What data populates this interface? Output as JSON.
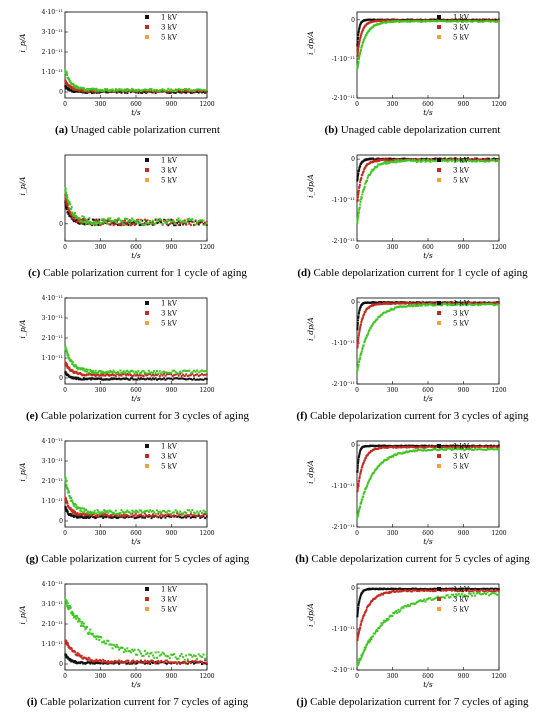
{
  "colors": {
    "1kV": "#111111",
    "3kV": "#c42a1f",
    "5kV": "#3fc521",
    "5kV_marker": "#f2a23a"
  },
  "panels": [
    {
      "label": "(a)",
      "caption": "Unaged cable polarization current",
      "chart_data": {
        "type": "scatter",
        "kind": "pol",
        "xlabel": "t/s",
        "ylabel": "i_p/A",
        "xlim": [
          0,
          1200
        ],
        "ylim": [
          -0.3,
          4.0
        ],
        "y_ticks": [
          0,
          1,
          2,
          3,
          4
        ],
        "y_tick_labels": [
          "0",
          "1·10⁻¹¹",
          "2·10⁻¹¹",
          "3·10⁻¹¹",
          "4·10⁻¹¹"
        ],
        "x_ticks": [
          0,
          300,
          600,
          900,
          1200
        ],
        "series": [
          {
            "name": "1 kV",
            "start": 0.3,
            "tau": 40,
            "end": 0.0,
            "noise": 0.05
          },
          {
            "name": "3 kV",
            "start": 0.6,
            "tau": 45,
            "end": 0.05,
            "noise": 0.05
          },
          {
            "name": "5 kV",
            "start": 1.1,
            "tau": 50,
            "end": 0.1,
            "noise": 0.06
          }
        ]
      }
    },
    {
      "label": "(b)",
      "caption": "Unaged cable depolarization current",
      "chart_data": {
        "type": "scatter",
        "kind": "depol",
        "xlabel": "t/s",
        "ylabel": "i_dp/A",
        "xlim": [
          0,
          1200
        ],
        "ylim": [
          -2.0,
          0.2
        ],
        "y_ticks": [
          -2,
          -1,
          0
        ],
        "y_tick_labels": [
          "-2·10⁻¹¹",
          "-1·10⁻¹¹",
          "0"
        ],
        "x_ticks": [
          0,
          300,
          600,
          900,
          1200
        ],
        "series": [
          {
            "name": "1 kV",
            "start": -0.8,
            "tau": 15,
            "end": 0.0,
            "noise": 0.01
          },
          {
            "name": "3 kV",
            "start": -1.0,
            "tau": 35,
            "end": -0.02,
            "noise": 0.01
          },
          {
            "name": "5 kV",
            "start": -1.3,
            "tau": 60,
            "end": -0.04,
            "noise": 0.015
          }
        ]
      }
    },
    {
      "label": "(c)",
      "caption": "Cable polarization current for 1 cycle of aging",
      "chart_data": {
        "type": "scatter",
        "kind": "pol",
        "xlabel": "t/s",
        "ylabel": "i_p/A",
        "xlim": [
          0,
          1200
        ],
        "ylim": [
          -0.6,
          2.4
        ],
        "y_ticks": [
          0
        ],
        "y_tick_labels": [
          "0"
        ],
        "x_ticks": [
          0,
          300,
          600,
          900,
          1200
        ],
        "series": [
          {
            "name": "1 kV",
            "start": 0.8,
            "tau": 40,
            "end": 0.05,
            "noise": 0.1
          },
          {
            "name": "3 kV",
            "start": 1.0,
            "tau": 45,
            "end": 0.05,
            "noise": 0.1
          },
          {
            "name": "5 kV",
            "start": 1.3,
            "tau": 50,
            "end": 0.08,
            "noise": 0.12
          }
        ]
      }
    },
    {
      "label": "(d)",
      "caption": "Cable depolarization current for 1 cycle of aging",
      "chart_data": {
        "type": "scatter",
        "kind": "depol",
        "xlabel": "t/s",
        "ylabel": "i_dp/A",
        "xlim": [
          0,
          1200
        ],
        "ylim": [
          -2.0,
          0.1
        ],
        "y_ticks": [
          -2,
          -1,
          0
        ],
        "y_tick_labels": [
          "-2·10⁻¹¹",
          "-1·10⁻¹¹",
          "0"
        ],
        "x_ticks": [
          0,
          300,
          600,
          900,
          1200
        ],
        "series": [
          {
            "name": "1 kV",
            "start": -0.6,
            "tau": 20,
            "end": 0.0,
            "noise": 0.015
          },
          {
            "name": "3 kV",
            "start": -1.1,
            "tau": 40,
            "end": -0.02,
            "noise": 0.02
          },
          {
            "name": "5 kV",
            "start": -1.6,
            "tau": 70,
            "end": -0.04,
            "noise": 0.03
          }
        ]
      }
    },
    {
      "label": "(e)",
      "caption": "Cable polarization current for 3 cycles of aging",
      "chart_data": {
        "type": "scatter",
        "kind": "pol",
        "xlabel": "t/s",
        "ylabel": "i_p/A",
        "xlim": [
          0,
          1200
        ],
        "ylim": [
          -0.3,
          4.0
        ],
        "y_ticks": [
          0,
          1,
          2,
          3,
          4
        ],
        "y_tick_labels": [
          "0",
          "1·10⁻¹¹",
          "2·10⁻¹¹",
          "3·10⁻¹¹",
          "4·10⁻¹¹"
        ],
        "x_ticks": [
          0,
          300,
          600,
          900,
          1200
        ],
        "series": [
          {
            "name": "1 kV",
            "start": 0.3,
            "tau": 40,
            "end": -0.05,
            "noise": 0.04
          },
          {
            "name": "3 kV",
            "start": 0.8,
            "tau": 50,
            "end": 0.15,
            "noise": 0.06
          },
          {
            "name": "5 kV",
            "start": 1.6,
            "tau": 60,
            "end": 0.3,
            "noise": 0.08
          }
        ]
      }
    },
    {
      "label": "(f)",
      "caption": "Cable depolarization current for 3 cycles of aging",
      "chart_data": {
        "type": "scatter",
        "kind": "depol",
        "xlabel": "t/s",
        "ylabel": "i_dp/A",
        "xlim": [
          0,
          1200
        ],
        "ylim": [
          -2.0,
          0.1
        ],
        "y_ticks": [
          -2,
          -1,
          0
        ],
        "y_tick_labels": [
          "-2·10⁻¹¹",
          "-1·10⁻¹¹",
          "0"
        ],
        "x_ticks": [
          0,
          300,
          600,
          900,
          1200
        ],
        "series": [
          {
            "name": "1 kV",
            "start": -0.8,
            "tau": 15,
            "end": -0.01,
            "noise": 0.01
          },
          {
            "name": "3 kV",
            "start": -1.2,
            "tau": 40,
            "end": -0.03,
            "noise": 0.015
          },
          {
            "name": "5 kV",
            "start": -1.7,
            "tau": 110,
            "end": -0.06,
            "noise": 0.02
          }
        ]
      }
    },
    {
      "label": "(g)",
      "caption": "Cable polarization current for 5 cycles of aging",
      "chart_data": {
        "type": "scatter",
        "kind": "pol",
        "xlabel": "t/s",
        "ylabel": "i_p/A",
        "xlim": [
          0,
          1200
        ],
        "ylim": [
          -0.3,
          4.0
        ],
        "y_ticks": [
          0,
          1,
          2,
          3,
          4
        ],
        "y_tick_labels": [
          "0",
          "1·10⁻¹¹",
          "2·10⁻¹¹",
          "3·10⁻¹¹",
          "4·10⁻¹¹"
        ],
        "x_ticks": [
          0,
          300,
          600,
          900,
          1200
        ],
        "series": [
          {
            "name": "1 kV",
            "start": 0.7,
            "tau": 30,
            "end": 0.2,
            "noise": 0.06
          },
          {
            "name": "3 kV",
            "start": 1.2,
            "tau": 40,
            "end": 0.3,
            "noise": 0.08
          },
          {
            "name": "5 kV",
            "start": 2.2,
            "tau": 50,
            "end": 0.45,
            "noise": 0.1
          }
        ]
      }
    },
    {
      "label": "(h)",
      "caption": "Cable depolarization current for 5 cycles of aging",
      "chart_data": {
        "type": "scatter",
        "kind": "depol",
        "xlabel": "t/s",
        "ylabel": "i_dp/A",
        "xlim": [
          0,
          1200
        ],
        "ylim": [
          -2.0,
          0.1
        ],
        "y_ticks": [
          -2,
          -1,
          0
        ],
        "y_tick_labels": [
          "-2·10⁻¹¹",
          "-1·10⁻¹¹",
          "0"
        ],
        "x_ticks": [
          0,
          300,
          600,
          900,
          1200
        ],
        "series": [
          {
            "name": "1 kV",
            "start": -0.8,
            "tau": 15,
            "end": -0.02,
            "noise": 0.01
          },
          {
            "name": "3 kV",
            "start": -1.2,
            "tau": 50,
            "end": -0.05,
            "noise": 0.015
          },
          {
            "name": "5 kV",
            "start": -1.8,
            "tau": 130,
            "end": -0.1,
            "noise": 0.02
          }
        ]
      }
    },
    {
      "label": "(i)",
      "caption": "Cable polarization current for 7 cycles of aging",
      "chart_data": {
        "type": "scatter",
        "kind": "pol",
        "xlabel": "t/s",
        "ylabel": "i_p/A",
        "xlim": [
          0,
          1200
        ],
        "ylim": [
          -0.3,
          4.0
        ],
        "y_ticks": [
          0,
          1,
          2,
          3,
          4
        ],
        "y_tick_labels": [
          "0",
          "1·10⁻¹¹",
          "2·10⁻¹¹",
          "3·10⁻¹¹",
          "4·10⁻¹¹"
        ],
        "x_ticks": [
          0,
          300,
          600,
          900,
          1200
        ],
        "series": [
          {
            "name": "1 kV",
            "start": 0.5,
            "tau": 40,
            "end": 0.05,
            "noise": 0.05
          },
          {
            "name": "3 kV",
            "start": 1.2,
            "tau": 100,
            "end": 0.1,
            "noise": 0.08
          },
          {
            "name": "5 kV",
            "start": 3.2,
            "tau": 260,
            "end": 0.3,
            "noise": 0.15
          }
        ]
      }
    },
    {
      "label": "(j)",
      "caption": "Cable depolarization current for 7 cycles of aging",
      "chart_data": {
        "type": "scatter",
        "kind": "depol",
        "xlabel": "t/s",
        "ylabel": "i_dp/A",
        "xlim": [
          0,
          1200
        ],
        "ylim": [
          -2.0,
          0.1
        ],
        "y_ticks": [
          -2,
          -1,
          0
        ],
        "y_tick_labels": [
          "-2·10⁻¹¹",
          "-1·10⁻¹¹",
          "0"
        ],
        "x_ticks": [
          0,
          300,
          600,
          900,
          1200
        ],
        "series": [
          {
            "name": "1 kV",
            "start": -0.8,
            "tau": 20,
            "end": -0.02,
            "noise": 0.01
          },
          {
            "name": "3 kV",
            "start": -1.3,
            "tau": 80,
            "end": -0.06,
            "noise": 0.02
          },
          {
            "name": "5 kV",
            "start": -1.9,
            "tau": 250,
            "end": -0.12,
            "noise": 0.04
          }
        ]
      }
    }
  ]
}
